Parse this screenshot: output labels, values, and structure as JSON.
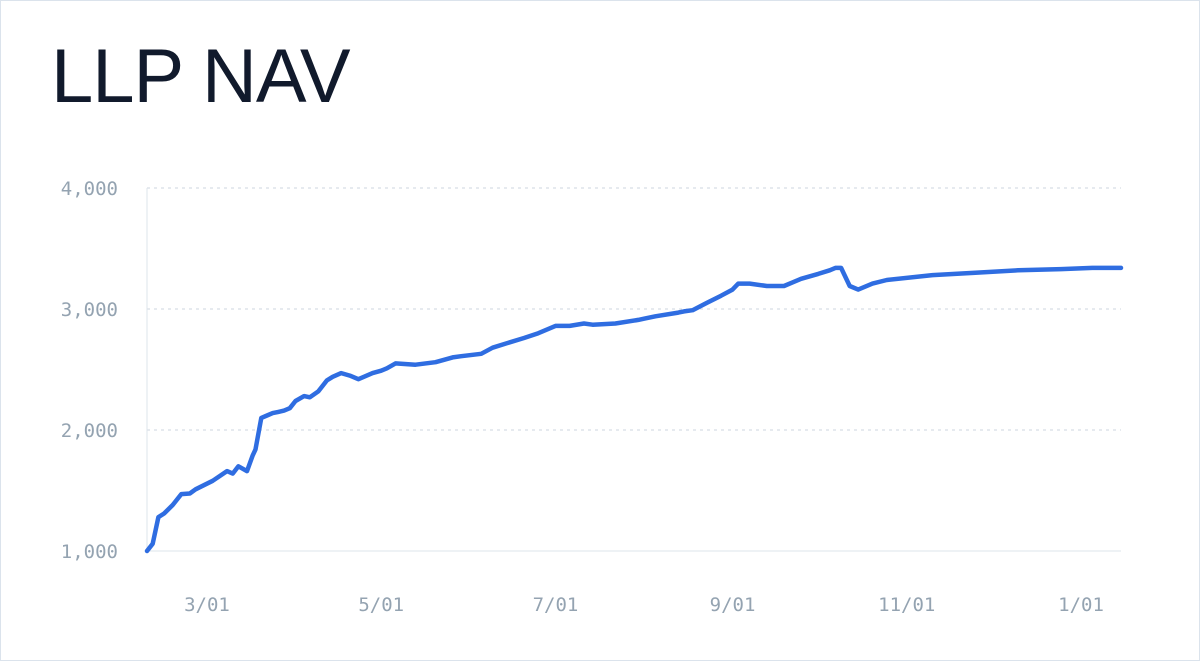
{
  "chart_data": {
    "type": "line",
    "title": "LLP NAV",
    "ylim": [
      1000,
      4000
    ],
    "y_ticks": [
      {
        "value": 1000,
        "label": "1,000"
      },
      {
        "value": 2000,
        "label": "2,000"
      },
      {
        "value": 3000,
        "label": "3,000"
      },
      {
        "value": 4000,
        "label": "4,000"
      }
    ],
    "x_ticks": [
      {
        "date": "2023-03-01",
        "label": "3/01"
      },
      {
        "date": "2023-05-01",
        "label": "5/01"
      },
      {
        "date": "2023-07-01",
        "label": "7/01"
      },
      {
        "date": "2023-09-01",
        "label": "9/01"
      },
      {
        "date": "2023-11-01",
        "label": "11/01"
      },
      {
        "date": "2024-01-01",
        "label": "1/01"
      }
    ],
    "xlim": [
      "2023-02-08",
      "2024-01-15"
    ],
    "grid": "horizontal-dashed",
    "line_color": "#2f6de1",
    "series": [
      {
        "x": [
          "2023-02-08",
          "2023-02-10",
          "2023-02-12",
          "2023-02-14",
          "2023-02-17",
          "2023-02-20",
          "2023-02-23",
          "2023-02-25",
          "2023-03-03",
          "2023-03-08",
          "2023-03-10",
          "2023-03-12",
          "2023-03-15",
          "2023-03-17",
          "2023-03-18",
          "2023-03-20",
          "2023-03-22",
          "2023-03-24",
          "2023-03-26",
          "2023-03-28",
          "2023-03-30",
          "2023-04-01",
          "2023-04-04",
          "2023-04-06",
          "2023-04-09",
          "2023-04-12",
          "2023-04-14",
          "2023-04-17",
          "2023-04-20",
          "2023-04-23",
          "2023-04-28",
          "2023-05-01",
          "2023-05-03",
          "2023-05-06",
          "2023-05-13",
          "2023-05-20",
          "2023-05-23",
          "2023-05-26",
          "2023-05-29",
          "2023-06-05",
          "2023-06-09",
          "2023-06-13",
          "2023-06-20",
          "2023-06-25",
          "2023-06-28",
          "2023-07-01",
          "2023-07-06",
          "2023-07-11",
          "2023-07-14",
          "2023-07-22",
          "2023-07-30",
          "2023-08-01",
          "2023-08-05",
          "2023-08-13",
          "2023-08-15",
          "2023-08-18",
          "2023-08-23",
          "2023-08-28",
          "2023-09-01",
          "2023-09-03",
          "2023-09-07",
          "2023-09-13",
          "2023-09-17",
          "2023-09-19",
          "2023-09-22",
          "2023-09-25",
          "2023-10-01",
          "2023-10-05",
          "2023-10-07",
          "2023-10-09",
          "2023-10-12",
          "2023-10-15",
          "2023-10-20",
          "2023-10-25",
          "2023-11-10",
          "2023-11-25",
          "2023-12-10",
          "2023-12-25",
          "2024-01-05",
          "2024-01-15"
        ],
        "y": [
          1000,
          1060,
          1280,
          1310,
          1380,
          1470,
          1475,
          1510,
          1580,
          1660,
          1640,
          1700,
          1660,
          1790,
          1840,
          2100,
          2120,
          2140,
          2150,
          2160,
          2180,
          2240,
          2280,
          2270,
          2320,
          2410,
          2440,
          2470,
          2450,
          2420,
          2470,
          2490,
          2510,
          2550,
          2540,
          2560,
          2580,
          2600,
          2610,
          2630,
          2680,
          2710,
          2760,
          2800,
          2830,
          2860,
          2860,
          2880,
          2870,
          2880,
          2910,
          2920,
          2940,
          2970,
          2980,
          2990,
          3050,
          3110,
          3160,
          3210,
          3210,
          3190,
          3190,
          3190,
          3220,
          3250,
          3290,
          3320,
          3340,
          3340,
          3190,
          3160,
          3210,
          3240,
          3280,
          3300,
          3320,
          3330,
          3340,
          3340
        ]
      }
    ]
  }
}
